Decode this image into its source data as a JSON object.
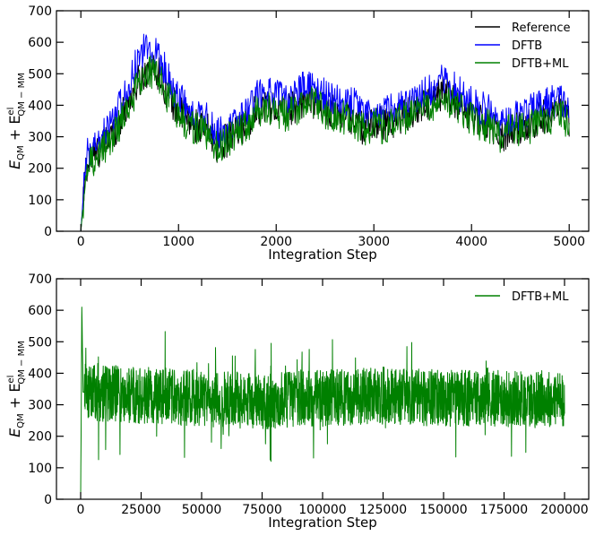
{
  "chart_data": [
    {
      "type": "line",
      "xlabel": "Integration Step",
      "ylabel": {
        "main": "E",
        "sub1": "QM",
        "plus": " + E",
        "sup": "el",
        "sub2": "QM − MM"
      },
      "xlim": [
        -250,
        5200
      ],
      "ylim": [
        0,
        700
      ],
      "xticks": [
        0,
        1000,
        2000,
        3000,
        4000,
        5000
      ],
      "yticks": [
        0,
        100,
        200,
        300,
        400,
        500,
        600,
        700
      ],
      "legend_position": "top-right",
      "series": [
        {
          "name": "Reference",
          "color": "#000000",
          "x": [
            0,
            50,
            100,
            200,
            300,
            400,
            500,
            600,
            700,
            800,
            900,
            1000,
            1100,
            1200,
            1300,
            1400,
            1500,
            1600,
            1700,
            1800,
            1900,
            2000,
            2100,
            2200,
            2300,
            2400,
            2500,
            2600,
            2700,
            2800,
            2900,
            3000,
            3100,
            3200,
            3300,
            3400,
            3500,
            3600,
            3700,
            3800,
            3900,
            4000,
            4100,
            4200,
            4300,
            4400,
            4500,
            4600,
            4700,
            4800,
            4900,
            5000
          ],
          "values": [
            0,
            200,
            230,
            260,
            300,
            350,
            420,
            480,
            520,
            500,
            430,
            380,
            350,
            330,
            320,
            270,
            290,
            310,
            340,
            390,
            400,
            390,
            380,
            400,
            420,
            410,
            390,
            380,
            370,
            360,
            320,
            350,
            340,
            350,
            370,
            380,
            400,
            410,
            440,
            420,
            390,
            370,
            350,
            340,
            300,
            320,
            330,
            340,
            360,
            370,
            380,
            350
          ]
        },
        {
          "name": "DFTB",
          "color": "#0000ff",
          "x": [
            0,
            50,
            100,
            200,
            300,
            400,
            500,
            600,
            700,
            800,
            900,
            1000,
            1100,
            1200,
            1300,
            1400,
            1500,
            1600,
            1700,
            1800,
            1900,
            2000,
            2100,
            2200,
            2300,
            2400,
            2500,
            2600,
            2700,
            2800,
            2900,
            3000,
            3100,
            3200,
            3300,
            3400,
            3500,
            3600,
            3700,
            3800,
            3900,
            4000,
            4100,
            4200,
            4300,
            4400,
            4500,
            4600,
            4700,
            4800,
            4900,
            5000
          ],
          "values": [
            0,
            230,
            260,
            290,
            340,
            400,
            480,
            560,
            590,
            560,
            480,
            420,
            390,
            370,
            360,
            310,
            330,
            350,
            380,
            430,
            440,
            430,
            420,
            440,
            460,
            450,
            430,
            420,
            410,
            400,
            360,
            390,
            380,
            390,
            410,
            420,
            440,
            450,
            480,
            460,
            430,
            410,
            390,
            380,
            340,
            360,
            370,
            380,
            400,
            410,
            420,
            390
          ]
        },
        {
          "name": "DFTB+ML",
          "color": "#008000",
          "x": [
            0,
            50,
            100,
            200,
            300,
            400,
            500,
            600,
            700,
            800,
            900,
            1000,
            1100,
            1200,
            1300,
            1400,
            1500,
            1600,
            1700,
            1800,
            1900,
            2000,
            2100,
            2200,
            2300,
            2400,
            2500,
            2600,
            2700,
            2800,
            2900,
            3000,
            3100,
            3200,
            3300,
            3400,
            3500,
            3600,
            3700,
            3800,
            3900,
            4000,
            4100,
            4200,
            4300,
            4400,
            4500,
            4600,
            4700,
            4800,
            4900,
            5000
          ],
          "values": [
            0,
            180,
            220,
            250,
            290,
            340,
            410,
            470,
            510,
            490,
            420,
            370,
            340,
            320,
            310,
            270,
            290,
            310,
            330,
            380,
            390,
            380,
            370,
            390,
            410,
            400,
            380,
            370,
            360,
            350,
            320,
            340,
            330,
            340,
            360,
            370,
            390,
            400,
            430,
            410,
            380,
            360,
            340,
            330,
            300,
            320,
            320,
            330,
            350,
            360,
            370,
            340
          ]
        }
      ]
    },
    {
      "type": "line",
      "xlabel": "Integration Step",
      "ylabel": {
        "main": "E",
        "sub1": "QM",
        "plus": " + E",
        "sup": "el",
        "sub2": "QM − MM"
      },
      "xlim": [
        -10000,
        210000
      ],
      "ylim": [
        0,
        700
      ],
      "xticks": [
        0,
        25000,
        50000,
        75000,
        100000,
        125000,
        150000,
        175000,
        200000
      ],
      "yticks": [
        0,
        100,
        200,
        300,
        400,
        500,
        600,
        700
      ],
      "legend_position": "top-right",
      "series": [
        {
          "name": "DFTB+ML",
          "color": "#008000",
          "x": [
            0,
            500,
            1000,
            25000,
            50000,
            75000,
            100000,
            125000,
            150000,
            175000,
            200000
          ],
          "values": [
            0,
            610,
            340,
            330,
            320,
            310,
            320,
            330,
            320,
            320,
            320
          ],
          "range": [
            120,
            560
          ]
        }
      ]
    }
  ]
}
